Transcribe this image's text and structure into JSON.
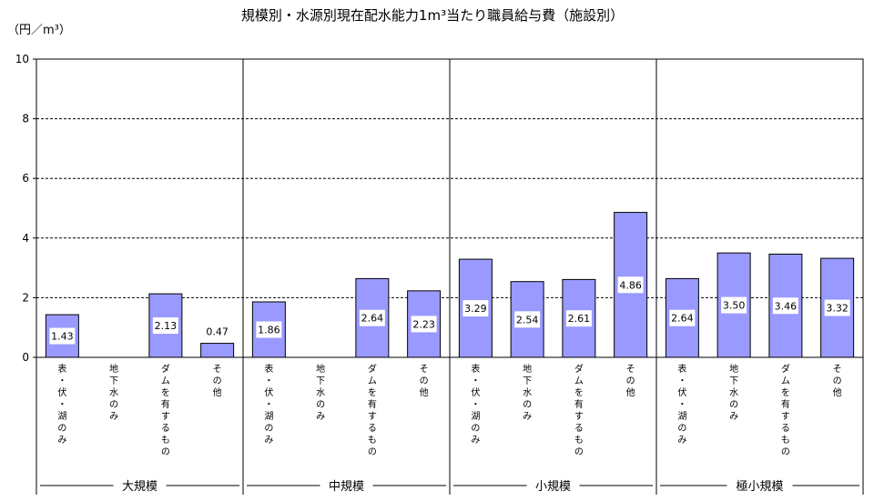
{
  "chart_data": {
    "type": "bar",
    "title": "規模別・水源別現在配水能力1m³当たり職員給与費（施設別）",
    "unit_label": "（円／m³）",
    "ylim": [
      0,
      10
    ],
    "yticks": [
      "0",
      "2",
      "4",
      "6",
      "8",
      "10"
    ],
    "grid": true,
    "groups": [
      {
        "name": "大規模",
        "categories": [
          "表・伏・湖のみ",
          "地下水のみ",
          "ダムを有するもの",
          "その他"
        ],
        "values": [
          1.43,
          null,
          2.13,
          0.47
        ],
        "labels": [
          "1.43",
          "",
          "2.13",
          "0.47"
        ]
      },
      {
        "name": "中規模",
        "categories": [
          "表・伏・湖のみ",
          "地下水のみ",
          "ダムを有するもの",
          "その他"
        ],
        "values": [
          1.86,
          null,
          2.64,
          2.23
        ],
        "labels": [
          "1.86",
          "",
          "2.64",
          "2.23"
        ]
      },
      {
        "name": "小規模",
        "categories": [
          "表・伏・湖のみ",
          "地下水のみ",
          "ダムを有するもの",
          "その他"
        ],
        "values": [
          3.29,
          2.54,
          2.61,
          4.86
        ],
        "labels": [
          "3.29",
          "2.54",
          "2.61",
          "4.86"
        ]
      },
      {
        "name": "極小規模",
        "categories": [
          "表・伏・湖のみ",
          "地下水のみ",
          "ダムを有するもの",
          "その他"
        ],
        "values": [
          2.64,
          3.5,
          3.46,
          3.32
        ],
        "labels": [
          "2.64",
          "3.50",
          "3.46",
          "3.32"
        ]
      }
    ],
    "colors": {
      "bar": "#9999ff",
      "bar_stroke": "#000000",
      "grid": "#000000"
    }
  }
}
